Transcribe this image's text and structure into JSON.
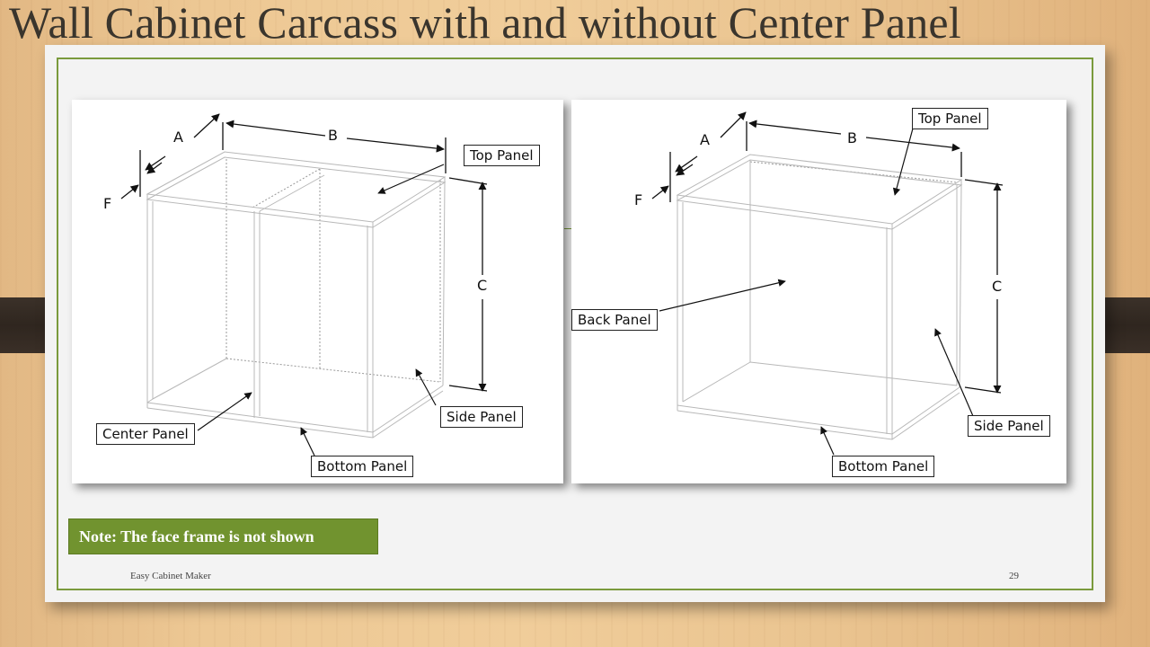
{
  "slide": {
    "title": "Wall Cabinet Carcass with and without Center Panel",
    "note": "Note: The face frame is not shown",
    "footer_left": "Easy Cabinet Maker",
    "page_number": "29"
  },
  "colors": {
    "accent_green": "#71932f",
    "frame_green": "#7a9a3c",
    "title_text": "#3a352d"
  },
  "diagram_left": {
    "dimensions": {
      "a": "A",
      "b": "B",
      "c": "C",
      "f": "F"
    },
    "callouts": {
      "top_panel": "Top Panel",
      "side_panel": "Side Panel",
      "center_panel": "Center Panel",
      "bottom_panel": "Bottom Panel"
    }
  },
  "diagram_right": {
    "dimensions": {
      "a": "A",
      "b": "B",
      "c": "C",
      "f": "F"
    },
    "callouts": {
      "top_panel": "Top Panel",
      "back_panel": "Back Panel",
      "side_panel": "Side Panel",
      "bottom_panel": "Bottom Panel"
    }
  }
}
